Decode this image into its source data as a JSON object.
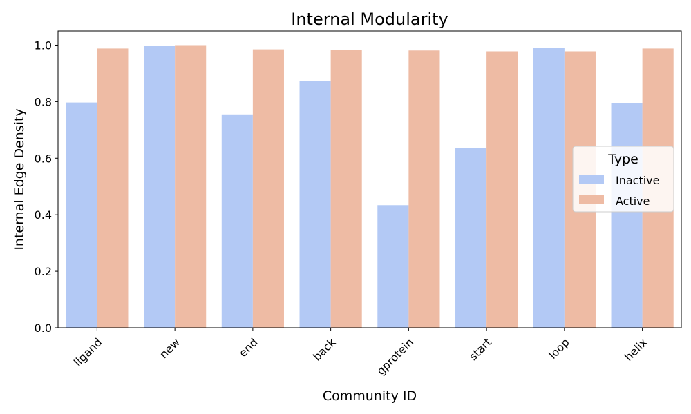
{
  "chart_data": {
    "type": "bar",
    "title": "Internal Modularity",
    "xlabel": "Community ID",
    "ylabel": "Internal Edge Density",
    "ylim": [
      0,
      1.05
    ],
    "yticks": [
      "0.0",
      "0.2",
      "0.4",
      "0.6",
      "0.8",
      "1.0"
    ],
    "categories": [
      "ligand",
      "new",
      "end",
      "back",
      "gprotein",
      "start",
      "loop",
      "helix"
    ],
    "series": [
      {
        "name": "Inactive",
        "color": "#b3c9f5",
        "values": [
          0.797,
          0.997,
          0.755,
          0.873,
          0.434,
          0.636,
          0.99,
          0.796
        ]
      },
      {
        "name": "Active",
        "color": "#eebba4",
        "values": [
          0.988,
          1.0,
          0.985,
          0.983,
          0.981,
          0.978,
          0.978,
          0.988
        ]
      }
    ],
    "legend": {
      "title": "Type",
      "placement": "center-right"
    },
    "grid": false
  }
}
